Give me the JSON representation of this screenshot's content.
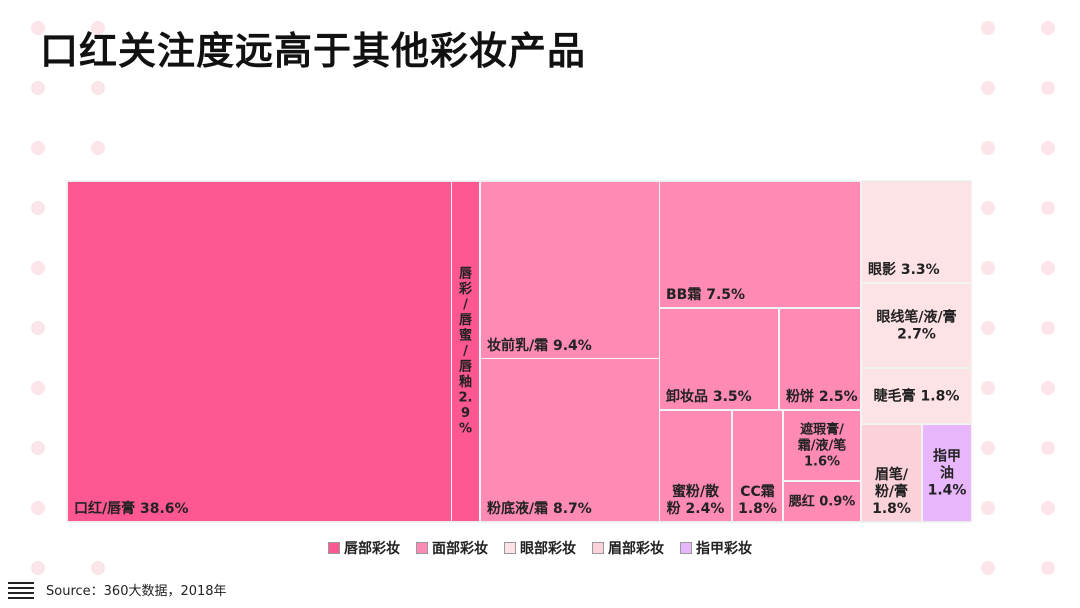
{
  "title": "口红关注度远高于其他彩妆产品",
  "source": "Source：360大数据，2018年",
  "colors": {
    "lip": "#ff5792",
    "face": "#ff8ab6",
    "eye": "#fde3e6",
    "brow": "#fbd2da",
    "nail": "#e7b6fb",
    "dot": "#fbe5e8"
  },
  "legend": [
    {
      "key": "lip",
      "label": "唇部彩妆"
    },
    {
      "key": "face",
      "label": "面部彩妆"
    },
    {
      "key": "eye",
      "label": "眼部彩妆"
    },
    {
      "key": "brow",
      "label": "眉部彩妆"
    },
    {
      "key": "nail",
      "label": "指甲彩妆"
    }
  ],
  "chart_data": {
    "type": "treemap",
    "title": "口红关注度远高于其他彩妆产品",
    "unit": "%",
    "items": [
      {
        "label": "口红/唇膏 38.6%",
        "name": "口红/唇膏",
        "value": 38.6,
        "group": "唇部彩妆"
      },
      {
        "label": "唇彩/唇蜜/唇釉 2.9%",
        "name": "唇彩/唇蜜/唇釉",
        "value": 2.9,
        "group": "唇部彩妆"
      },
      {
        "label": "妆前乳/霜 9.4%",
        "name": "妆前乳/霜",
        "value": 9.4,
        "group": "面部彩妆"
      },
      {
        "label": "粉底液/霜 8.7%",
        "name": "粉底液/霜",
        "value": 8.7,
        "group": "面部彩妆"
      },
      {
        "label": "BB霜 7.5%",
        "name": "BB霜",
        "value": 7.5,
        "group": "面部彩妆"
      },
      {
        "label": "卸妆品 3.5%",
        "name": "卸妆品",
        "value": 3.5,
        "group": "面部彩妆"
      },
      {
        "label": "粉饼 2.5%",
        "name": "粉饼",
        "value": 2.5,
        "group": "面部彩妆"
      },
      {
        "label": "遮瑕膏/霜/液/笔 1.6%",
        "name": "遮瑕膏/霜/液/笔",
        "value": 1.6,
        "group": "面部彩妆"
      },
      {
        "label": "腮红 0.9%",
        "name": "腮红",
        "value": 0.9,
        "group": "面部彩妆"
      },
      {
        "label": "蜜粉/散粉 2.4%",
        "name": "蜜粉/散粉",
        "value": 2.4,
        "group": "面部彩妆"
      },
      {
        "label": "CC霜 1.8%",
        "name": "CC霜",
        "value": 1.8,
        "group": "面部彩妆"
      },
      {
        "label": "眼影 3.3%",
        "name": "眼影",
        "value": 3.3,
        "group": "眼部彩妆"
      },
      {
        "label": "眼线笔/液/膏 2.7%",
        "name": "眼线笔/液/膏",
        "value": 2.7,
        "group": "眼部彩妆"
      },
      {
        "label": "睫毛膏 1.8%",
        "name": "睫毛膏",
        "value": 1.8,
        "group": "眼部彩妆"
      },
      {
        "label": "眉笔/粉/膏 1.8%",
        "name": "眉笔/粉/膏",
        "value": 1.8,
        "group": "眉部彩妆"
      },
      {
        "label": "指甲油 1.4%",
        "name": "指甲油",
        "value": 1.4,
        "group": "指甲彩妆"
      }
    ]
  }
}
